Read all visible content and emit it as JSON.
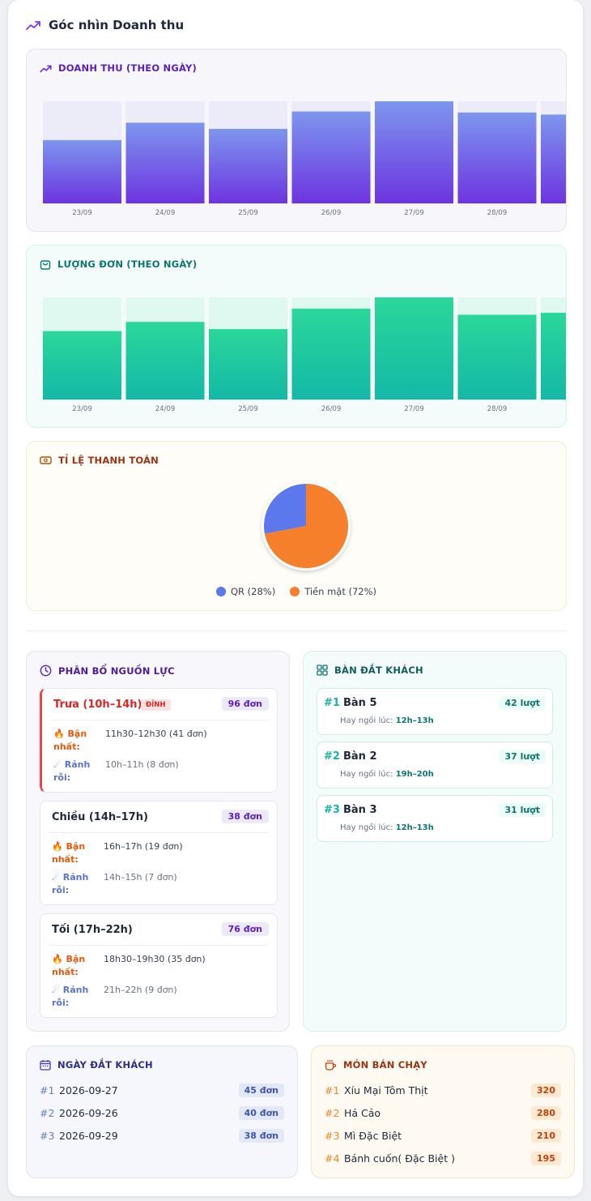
{
  "header": {
    "title": "Góc nhìn Doanh thu",
    "icon": "trending-up-icon"
  },
  "revenue": {
    "title": "DOANH THU (THEO NGÀY)",
    "icon": "trending-up-icon",
    "chart_data": {
      "type": "bar",
      "title": "DOANH THU (THEO NGÀY)",
      "categories": [
        "23/09",
        "24/09",
        "25/09",
        "26/09",
        "27/09",
        "28/09",
        ""
      ],
      "values": [
        0.62,
        0.79,
        0.73,
        0.9,
        1.0,
        0.89,
        0.87
      ],
      "ylim": [
        0,
        1
      ],
      "colors": [
        "#7d96ee",
        "#6d34e0"
      ],
      "grid": false
    }
  },
  "orders": {
    "title": "LƯỢNG ĐƠN (THEO NGÀY)",
    "icon": "shopping-bag-icon",
    "chart_data": {
      "type": "bar",
      "title": "LƯỢNG ĐƠN (THEO NGÀY)",
      "categories": [
        "23/09",
        "24/09",
        "25/09",
        "26/09",
        "27/09",
        "28/09",
        ""
      ],
      "values": [
        0.67,
        0.76,
        0.69,
        0.89,
        1.0,
        0.83,
        0.85
      ],
      "ylim": [
        0,
        1
      ],
      "colors": [
        "#2bd79a",
        "#14b8a6"
      ],
      "grid": false
    }
  },
  "payment": {
    "title": "TỈ LỆ THANH TOÁN",
    "icon": "cash-icon",
    "chart_data": {
      "type": "pie",
      "labels": [
        "QR (28%)",
        "Tiền mặt (72%)"
      ],
      "values": [
        28,
        72
      ],
      "colors": [
        "#5b78ec",
        "#f57f2a"
      ]
    }
  },
  "resources": {
    "title": "PHÂN BỔ NGUỒN LỰC",
    "icon": "clock-icon",
    "busy_label": "Bận nhất:",
    "free_label": "Rảnh rỗi:",
    "shifts": [
      {
        "name": "Trưa (10h–14h)",
        "badge": "ĐỈNH",
        "count": "96 đơn",
        "busy": "11h30–12h30 (41 đơn)",
        "free": "10h–11h (8 đơn)"
      },
      {
        "name": "Chiều (14h–17h)",
        "count": "38 đơn",
        "busy": "16h–17h (19 đơn)",
        "free": "14h–15h (7 đơn)"
      },
      {
        "name": "Tối (17h–22h)",
        "count": "76 đơn",
        "busy": "18h30–19h30 (35 đơn)",
        "free": "21h–22h (9 đơn)"
      }
    ]
  },
  "tables": {
    "title": "BÀN ĐẮT KHÁCH",
    "icon": "grid-icon",
    "hint_label": "Hay ngồi lúc:",
    "items": [
      {
        "rank": "#1",
        "name": "Bàn 5",
        "count": "42 lượt",
        "time": "12h–13h"
      },
      {
        "rank": "#2",
        "name": "Bàn 2",
        "count": "37 lượt",
        "time": "19h–20h"
      },
      {
        "rank": "#3",
        "name": "Bàn 3",
        "count": "31 lượt",
        "time": "12h–13h"
      }
    ]
  },
  "days": {
    "title": "NGÀY ĐẮT KHÁCH",
    "icon": "calendar-icon",
    "items": [
      {
        "rank": "#1",
        "date": "2026-09-27",
        "count": "45 đơn"
      },
      {
        "rank": "#2",
        "date": "2026-09-26",
        "count": "40 đơn"
      },
      {
        "rank": "#3",
        "date": "2026-09-29",
        "count": "38 đơn"
      }
    ]
  },
  "dishes": {
    "title": "MÓN BÁN CHẠY",
    "icon": "coffee-cup-icon",
    "items": [
      {
        "rank": "#1",
        "name": "Xíu Mại Tôm Thịt",
        "count": "320"
      },
      {
        "rank": "#2",
        "name": "Há Cảo",
        "count": "280"
      },
      {
        "rank": "#3",
        "name": "Mì Đặc Biệt",
        "count": "210"
      },
      {
        "rank": "#4",
        "name": "Bánh cuốn( Đặc Biệt )",
        "count": "195"
      }
    ]
  }
}
